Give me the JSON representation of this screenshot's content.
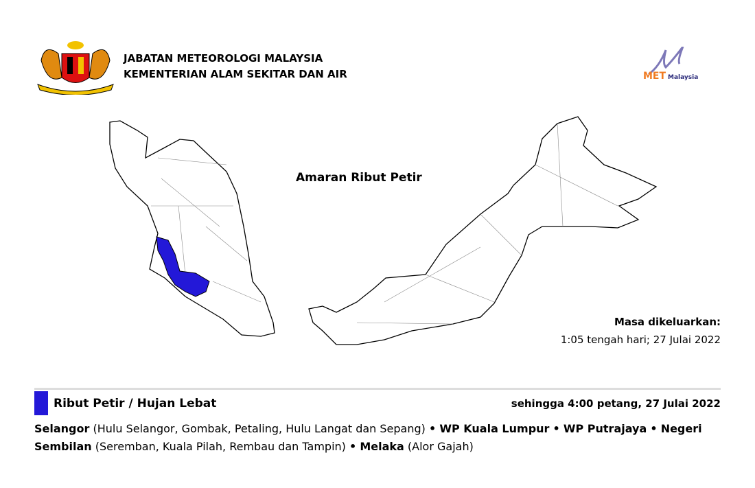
{
  "header": {
    "org_line1": "JABATAN METEOROLOGI MALAYSIA",
    "org_line2": "KEMENTERIAN ALAM SEKITAR DAN AIR",
    "crest_icon": "malaysia-coat-of-arms",
    "logo_text": "METMalaysia"
  },
  "map": {
    "title": "Amaran Ribut Petir",
    "highlight_color": "#2318d8"
  },
  "issued": {
    "label": "Masa dikeluarkan:",
    "time": "1:05 tengah hari; 27 Julai 2022"
  },
  "warning": {
    "type": "Ribut Petir / Hujan Lebat",
    "valid_until": "sehingga 4:00 petang, 27 Julai 2022",
    "color": "#2318d8",
    "areas": [
      {
        "state": "Selangor",
        "districts": "(Hulu Selangor, Gombak, Petaling, Hulu Langat dan Sepang)"
      },
      {
        "state": "WP Kuala Lumpur",
        "districts": ""
      },
      {
        "state": "WP Putrajaya",
        "districts": ""
      },
      {
        "state": "Negeri Sembilan",
        "districts": "(Seremban, Kuala Pilah, Rembau dan Tampin)"
      },
      {
        "state": "Melaka",
        "districts": "(Alor Gajah)"
      }
    ],
    "separator": "•"
  }
}
